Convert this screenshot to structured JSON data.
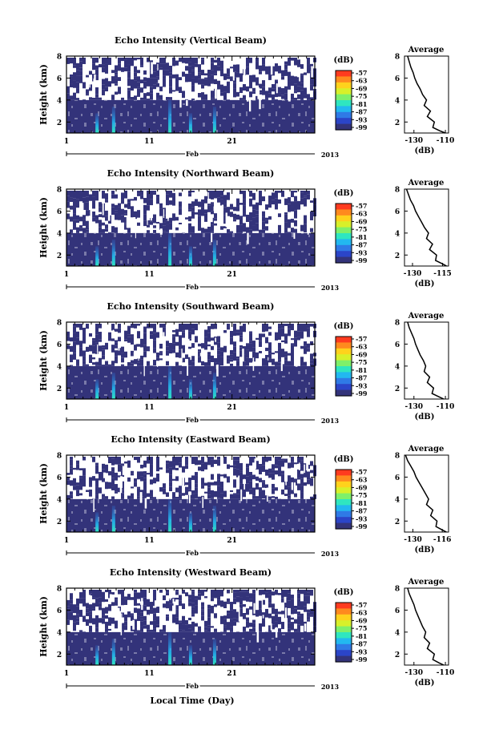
{
  "chart_data": {
    "type": "heatmap",
    "xlabel": "Local Time (Day)",
    "ylabel": "Height (km)",
    "x_tick_labels": [
      "1",
      "11",
      "21"
    ],
    "month_label": "Feb",
    "year_label": "2013",
    "y_tick_labels": [
      "2",
      "4",
      "6",
      "8"
    ],
    "ylim": [
      1,
      8
    ],
    "colorbar": {
      "unit": "(dB)",
      "tick_labels": [
        "-57",
        "-63",
        "-69",
        "-75",
        "-81",
        "-87",
        "-93",
        "-99"
      ],
      "colors": [
        "#ff3b1f",
        "#ff8a1e",
        "#ffd21c",
        "#d8f02a",
        "#7ff06a",
        "#2fe6c0",
        "#22b8f0",
        "#2f7ae6",
        "#2b45c8",
        "#33337a"
      ]
    },
    "panels": [
      {
        "title": "Echo Intensity (Vertical Beam)",
        "profile_title": "Average",
        "profile_xlabel": "(dB)",
        "profile_x_tick_labels": [
          "-130",
          "-110"
        ],
        "profile_xlim": [
          -136,
          -108
        ],
        "profile": {
          "height": [
            8,
            7.5,
            7,
            6.5,
            6,
            5.5,
            5,
            4.5,
            4,
            3.5,
            3,
            2.5,
            2,
            1.5,
            1.2,
            1
          ],
          "value": [
            -134,
            -133,
            -132,
            -130.5,
            -129.5,
            -128,
            -126,
            -124.5,
            -122,
            -123.5,
            -119.5,
            -121.5,
            -117,
            -118,
            -113.5,
            -110
          ]
        }
      },
      {
        "title": "Echo Intensity (Northward Beam)",
        "profile_title": "Average",
        "profile_xlabel": "(dB)",
        "profile_x_tick_labels": [
          "-130",
          "-115"
        ],
        "profile_xlim": [
          -134,
          -112
        ],
        "profile": {
          "height": [
            8,
            7.5,
            7,
            6.5,
            6,
            5.5,
            5,
            4.5,
            4,
            3.5,
            3,
            2.5,
            2,
            1.5,
            1.2,
            1
          ],
          "value": [
            -133,
            -132,
            -131,
            -129.5,
            -128.5,
            -127,
            -125.5,
            -124,
            -122,
            -123,
            -120,
            -121.5,
            -118,
            -118.5,
            -115,
            -113
          ]
        }
      },
      {
        "title": "Echo Intensity (Southward Beam)",
        "profile_title": "Average",
        "profile_xlabel": "(dB)",
        "profile_x_tick_labels": [
          "-130",
          "-110"
        ],
        "profile_xlim": [
          -136,
          -108
        ],
        "profile": {
          "height": [
            8,
            7.5,
            7,
            6.5,
            6,
            5.5,
            5,
            4.5,
            4,
            3.5,
            3,
            2.5,
            2,
            1.5,
            1.2,
            1
          ],
          "value": [
            -134,
            -133,
            -131.5,
            -130,
            -129,
            -127.5,
            -126,
            -124,
            -122.5,
            -123.5,
            -120,
            -121.5,
            -117.5,
            -118.5,
            -114,
            -111
          ]
        }
      },
      {
        "title": "Echo Intensity (Eastward Beam)",
        "profile_title": "Average",
        "profile_xlabel": "(dB)",
        "profile_x_tick_labels": [
          "-130",
          "-116"
        ],
        "profile_xlim": [
          -134,
          -113
        ],
        "profile": {
          "height": [
            8,
            7.5,
            7,
            6.5,
            6,
            5.5,
            5,
            4.5,
            4,
            3.5,
            3,
            2.5,
            2,
            1.5,
            1.2,
            1
          ],
          "value": [
            -133.5,
            -132.5,
            -131,
            -129.5,
            -128.5,
            -127,
            -125.5,
            -124,
            -122.5,
            -123.5,
            -120.5,
            -121.5,
            -118.5,
            -119,
            -116,
            -114
          ]
        }
      },
      {
        "title": "Echo Intensity (Westward Beam)",
        "profile_title": "Average",
        "profile_xlabel": "(dB)",
        "profile_x_tick_labels": [
          "-130",
          "-110"
        ],
        "profile_xlim": [
          -136,
          -108
        ],
        "profile": {
          "height": [
            8,
            7.5,
            7,
            6.5,
            6,
            5.5,
            5,
            4.5,
            4,
            3.5,
            3,
            2.5,
            2,
            1.5,
            1.2,
            1
          ],
          "value": [
            -134,
            -133,
            -131.5,
            -130,
            -129,
            -127.5,
            -126,
            -124.5,
            -122.5,
            -123.5,
            -120,
            -121.5,
            -117,
            -118,
            -114,
            -111
          ]
        }
      }
    ]
  }
}
